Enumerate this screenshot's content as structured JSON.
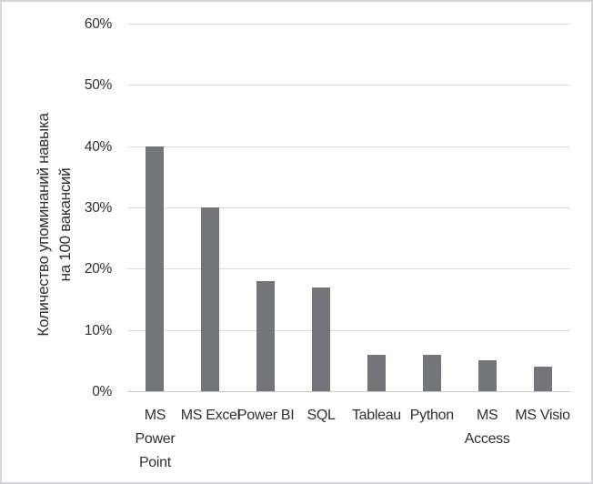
{
  "chart_data": {
    "type": "bar",
    "title": "",
    "categories": [
      "MS Power Point",
      "MS Excel",
      "Power BI",
      "SQL",
      "Tableau",
      "Python",
      "MS Access",
      "MS Visio"
    ],
    "category_label_lines": [
      [
        "MS",
        "Power",
        "Point"
      ],
      [
        "MS Excel"
      ],
      [
        "Power BI"
      ],
      [
        "SQL"
      ],
      [
        "Tableau"
      ],
      [
        "Python"
      ],
      [
        "MS",
        "Access"
      ],
      [
        "MS Visio"
      ]
    ],
    "values": [
      40,
      30,
      18,
      17,
      6,
      6,
      5,
      4
    ],
    "unit": "%",
    "xlabel": "",
    "ylabel": "Количество упоминаний навыка на 100 вакансий",
    "ylabel_lines": [
      "Количество упоминаний навыка",
      "на 100 вакансий"
    ],
    "ylim": [
      0,
      60
    ],
    "ytick_step": 10,
    "ytick_labels": [
      "0%",
      "10%",
      "20%",
      "30%",
      "40%",
      "50%",
      "60%"
    ],
    "grid": true,
    "legend_position": "none",
    "colors": {
      "bar": "#73757a",
      "gridline": "#dcdcdc",
      "axis_line": "#c9c9c9",
      "text": "#303030",
      "frame_border": "#d6d6d9",
      "background": "#ffffff"
    }
  }
}
